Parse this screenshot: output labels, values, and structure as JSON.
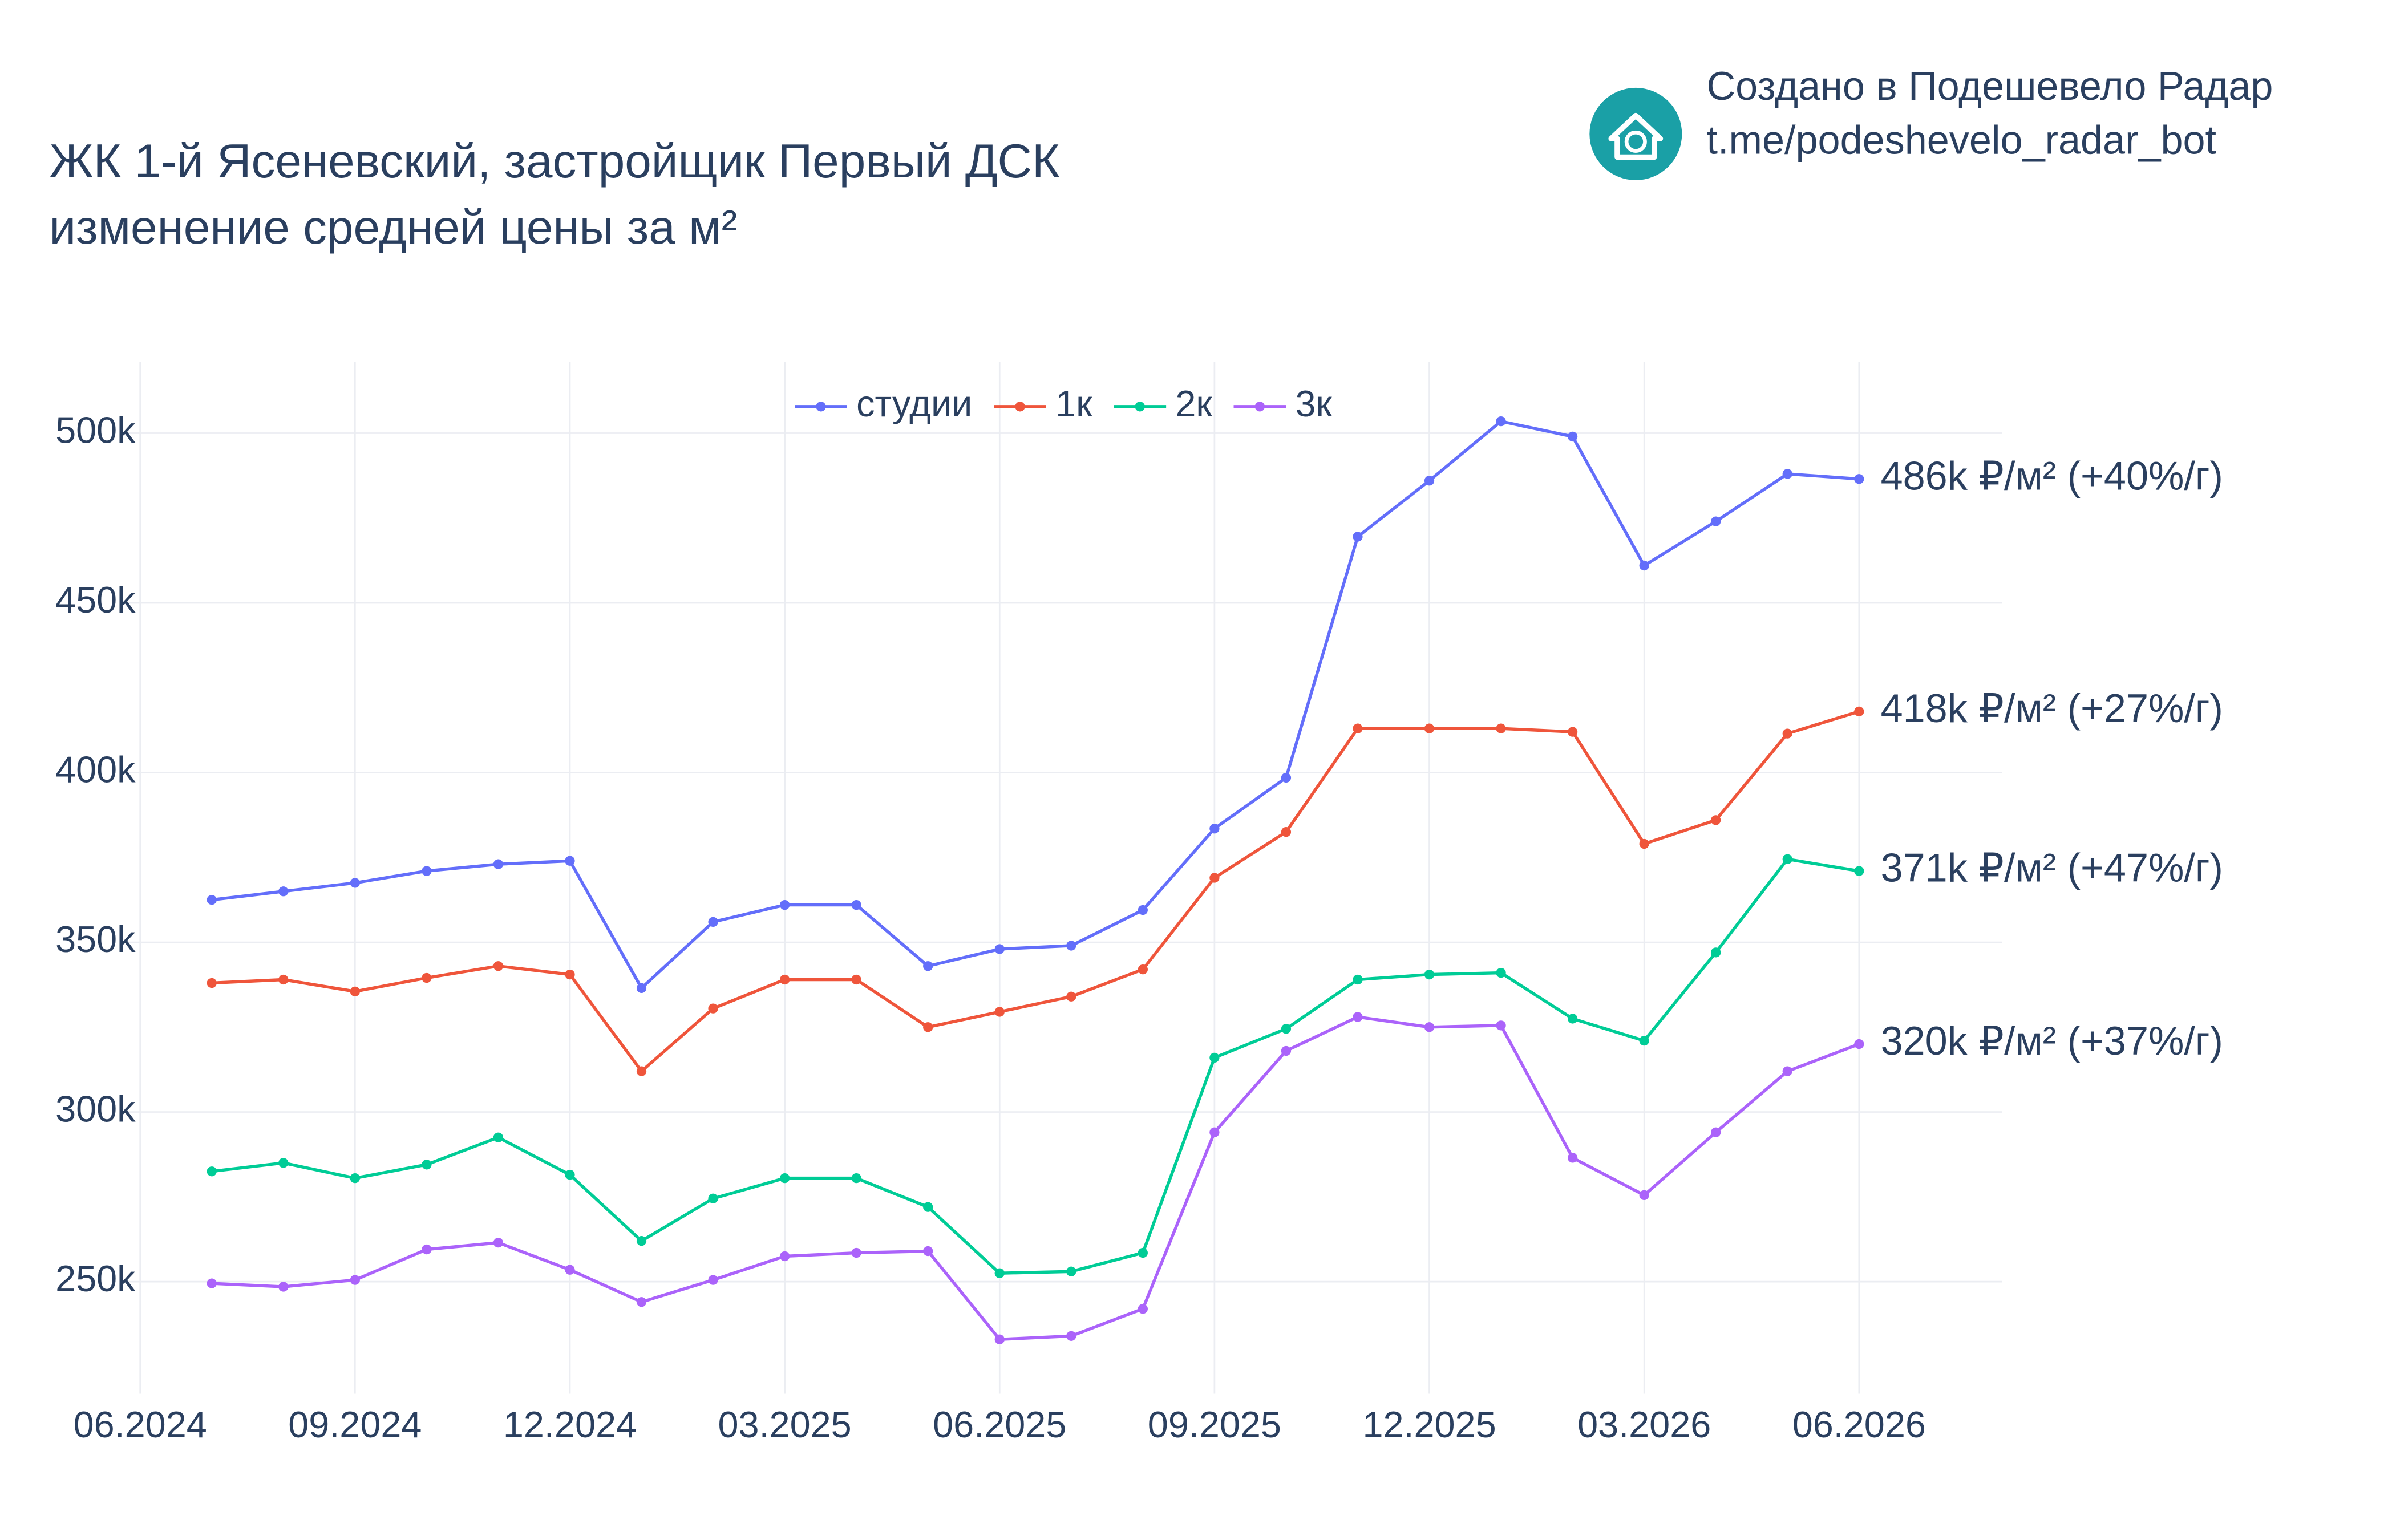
{
  "header": {
    "brand": "Создано в Подешевело Радар",
    "link": "t.me/podeshevelo_radar_bot"
  },
  "chart_data": {
    "type": "line",
    "title": [
      "ЖК 1-й Ясеневский, застройщик Первый ДСК",
      "изменение средней цены за м²"
    ],
    "x": [
      "07.2024",
      "08.2024",
      "09.2024",
      "10.2024",
      "11.2024",
      "12.2024",
      "01.2025",
      "02.2025",
      "03.2025",
      "04.2025",
      "05.2025",
      "06.2025",
      "07.2025",
      "08.2025",
      "09.2025",
      "10.2025",
      "11.2025",
      "12.2025",
      "01.2026",
      "02.2026",
      "03.2026",
      "04.2026",
      "05.2026",
      "06.2026"
    ],
    "xlim": [
      "06.2024",
      "08.2026"
    ],
    "xticks": [
      "06.2024",
      "09.2024",
      "12.2024",
      "03.2025",
      "06.2025",
      "09.2025",
      "12.2025",
      "03.2026",
      "06.2026"
    ],
    "ylim": [
      217000,
      521000
    ],
    "yticks": [
      {
        "value": 250000,
        "label": "250k"
      },
      {
        "value": 300000,
        "label": "300k"
      },
      {
        "value": 350000,
        "label": "350k"
      },
      {
        "value": 400000,
        "label": "400k"
      },
      {
        "value": 450000,
        "label": "450k"
      },
      {
        "value": 500000,
        "label": "500k"
      }
    ],
    "grid": true,
    "legend": "top",
    "series": [
      {
        "name": "студии",
        "color": "#636efa",
        "end_label": "486k ₽/м² (+40%/г)",
        "values": [
          362500,
          365000,
          367500,
          371000,
          373000,
          374000,
          336500,
          356000,
          361000,
          361000,
          343000,
          348000,
          349000,
          359500,
          383500,
          398500,
          469500,
          486000,
          503500,
          499000,
          461000,
          474000,
          488000,
          486500
        ]
      },
      {
        "name": "1к",
        "color": "#ef553b",
        "end_label": "418k ₽/м² (+27%/г)",
        "values": [
          338000,
          339000,
          335500,
          339500,
          343000,
          340500,
          312000,
          330500,
          339000,
          339000,
          325000,
          329500,
          334000,
          342000,
          369000,
          382500,
          413000,
          413000,
          413000,
          412000,
          379000,
          386000,
          411500,
          418000
        ]
      },
      {
        "name": "2к",
        "color": "#00cc96",
        "end_label": "371k ₽/м² (+47%/г)",
        "values": [
          282500,
          285000,
          280500,
          284500,
          292500,
          281500,
          262000,
          274500,
          280500,
          280500,
          272000,
          252500,
          253000,
          258500,
          316000,
          324500,
          339000,
          340500,
          341000,
          327500,
          321000,
          347000,
          374500,
          371000
        ]
      },
      {
        "name": "3к",
        "color": "#ab63fa",
        "end_label": "320k ₽/м² (+37%/г)",
        "values": [
          249500,
          248500,
          250500,
          259500,
          261500,
          253500,
          244000,
          250500,
          257500,
          258500,
          259000,
          233000,
          234000,
          242000,
          294000,
          318000,
          328000,
          325000,
          325500,
          286500,
          275500,
          294000,
          312000,
          320000
        ]
      }
    ]
  }
}
